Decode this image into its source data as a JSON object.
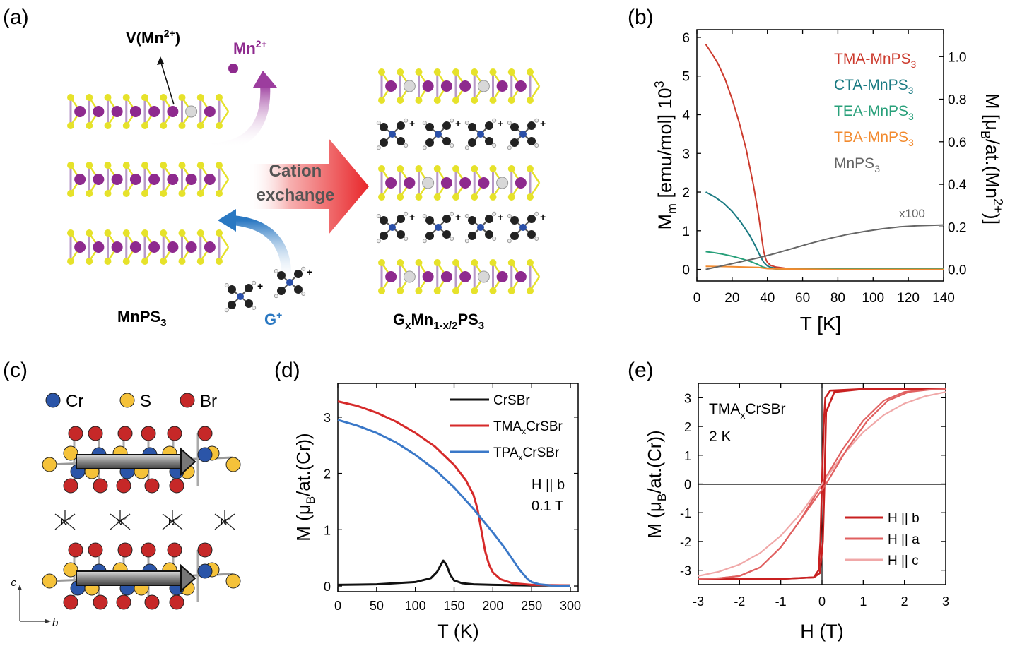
{
  "panels": {
    "a": {
      "letter": "(a)",
      "vacancy": "V(Mn",
      "vacancy_sup": "2+",
      "vacancy_close": ")",
      "ion": "Mn",
      "ion_sup": "2+",
      "arrow_text_1": "Cation",
      "arrow_text_2": "exchange",
      "left_label": "MnPS",
      "left_label_sub": "3",
      "guest": "G",
      "guest_sup": "+",
      "right_label_g": "G",
      "right_label_x": "x",
      "right_label_mn": "Mn",
      "right_label_sub": "1-x/2",
      "right_label_ps": "PS",
      "right_label_3": "3",
      "plus": "+"
    },
    "b": {
      "letter": "(b)",
      "annotation": "x100",
      "ylabel_left_main": "M",
      "ylabel_left_sub": "m",
      "ylabel_left_rest": " [emu/mol] 10",
      "ylabel_left_sup": "3",
      "ylabel_right_1": "M [μ",
      "ylabel_right_sub": "B",
      "ylabel_right_2": "/at.(Mn",
      "ylabel_right_sup": "2+",
      "ylabel_right_3": ")]",
      "xlabel": "T [K]"
    },
    "c": {
      "letter": "(c)",
      "legend": [
        {
          "label": "Cr",
          "color": "#2b55a8"
        },
        {
          "label": "S",
          "color": "#f5c23a"
        },
        {
          "label": "Br",
          "color": "#c62828"
        }
      ],
      "axis_c": "c",
      "axis_b": "b",
      "nplus": "N",
      "nplus_sup": "+"
    },
    "d": {
      "letter": "(d)",
      "ylabel_1": "M (μ",
      "ylabel_sub": "B",
      "ylabel_2": "/at.(Cr))",
      "xlabel": "T (K)",
      "cond_1": "H || b",
      "cond_2": "0.1 T"
    },
    "e": {
      "letter": "(e)",
      "ylabel_1": "M (μ",
      "ylabel_sub": "B",
      "ylabel_2": "/at.(Cr))",
      "xlabel": "H (T)",
      "sample_1": "TMA",
      "sample_sub": "x",
      "sample_2": "CrSBr",
      "temp": "2 K"
    }
  },
  "chart_data": [
    {
      "panel": "b",
      "type": "line",
      "xlabel": "T [K]",
      "ylabel": "M_m [emu/mol] 10^3",
      "ylabel_right": "M [μB/at.(Mn2+)]",
      "xlim": [
        0,
        140
      ],
      "ylim": [
        -0.3,
        6.2
      ],
      "ylim_right": [
        -0.0545,
        1.127
      ],
      "xticks": [
        0,
        20,
        40,
        60,
        80,
        100,
        120,
        140
      ],
      "yticks": [
        0,
        1,
        2,
        3,
        4,
        5,
        6
      ],
      "yticks_right": [
        "0.0",
        "0.2",
        "0.4",
        "0.6",
        "0.8",
        "1.0"
      ],
      "legend_position": "top-right",
      "series": [
        {
          "name": "TMA-MnPS3",
          "name_main": "TMA-MnPS",
          "name_sub": "3",
          "color": "#cc3b2e",
          "x": [
            5,
            8,
            12,
            16,
            20,
            24,
            28,
            32,
            35,
            37,
            38,
            39,
            40,
            42,
            45,
            50,
            60,
            80,
            100,
            140
          ],
          "y": [
            5.82,
            5.62,
            5.32,
            4.92,
            4.4,
            3.8,
            3.1,
            2.2,
            1.4,
            0.75,
            0.45,
            0.28,
            0.18,
            0.1,
            0.06,
            0.03,
            0.02,
            0.01,
            0.01,
            0.01
          ]
        },
        {
          "name": "CTA-MnPS3",
          "name_main": "CTA-MnPS",
          "name_sub": "3",
          "color": "#1a7a82",
          "x": [
            5,
            10,
            15,
            20,
            25,
            30,
            33,
            36,
            38,
            40,
            42,
            45,
            50,
            60,
            80,
            100,
            140
          ],
          "y": [
            2.0,
            1.88,
            1.72,
            1.5,
            1.22,
            0.88,
            0.62,
            0.34,
            0.18,
            0.09,
            0.05,
            0.03,
            0.02,
            0.01,
            0.01,
            0.01,
            0.01
          ]
        },
        {
          "name": "TEA-MnPS3",
          "name_main": "TEA-MnPS",
          "name_sub": "3",
          "color": "#28a07a",
          "x": [
            5,
            10,
            15,
            20,
            25,
            30,
            34,
            37,
            40,
            45,
            60,
            100,
            140
          ],
          "y": [
            0.46,
            0.43,
            0.39,
            0.34,
            0.28,
            0.21,
            0.14,
            0.07,
            0.03,
            0.01,
            0.01,
            0.01,
            0.01
          ]
        },
        {
          "name": "TBA-MnPS3",
          "name_main": "TBA-MnPS",
          "name_sub": "3",
          "color": "#f28a2e",
          "x": [
            5,
            20,
            35,
            40,
            50,
            80,
            140
          ],
          "y": [
            0.08,
            0.07,
            0.05,
            0.02,
            0.01,
            0.0,
            0.0
          ]
        },
        {
          "name": "MnPS3",
          "name_main": "MnPS",
          "name_sub": "3",
          "color": "#666666",
          "x": [
            5,
            15,
            25,
            35,
            45,
            55,
            65,
            75,
            85,
            95,
            105,
            115,
            125,
            140
          ],
          "y": [
            0.0,
            0.1,
            0.2,
            0.3,
            0.42,
            0.55,
            0.68,
            0.8,
            0.9,
            0.98,
            1.05,
            1.1,
            1.13,
            1.15
          ]
        }
      ]
    },
    {
      "panel": "d",
      "type": "line",
      "xlabel": "T (K)",
      "ylabel": "M (μB/at.(Cr))",
      "xlim": [
        0,
        310
      ],
      "ylim": [
        -0.1,
        3.6
      ],
      "xticks": [
        0,
        50,
        100,
        150,
        200,
        250,
        300
      ],
      "yticks": [
        0,
        1,
        2,
        3
      ],
      "legend_position": "top-right",
      "series": [
        {
          "name": "CrSBr",
          "name_main": "CrSBr",
          "name_sub": "",
          "name_rest": "",
          "color": "#111111",
          "x": [
            0,
            50,
            100,
            120,
            128,
            133,
            136,
            140,
            145,
            150,
            160,
            175,
            200,
            250,
            300
          ],
          "y": [
            0.02,
            0.03,
            0.07,
            0.14,
            0.25,
            0.38,
            0.45,
            0.38,
            0.2,
            0.1,
            0.05,
            0.03,
            0.02,
            0.01,
            0.01
          ]
        },
        {
          "name": "TMAxCrSBr",
          "name_main": "TMA",
          "name_sub": "x",
          "name_rest": "CrSBr",
          "color": "#d62a2a",
          "x": [
            0,
            25,
            50,
            75,
            100,
            125,
            150,
            165,
            175,
            180,
            185,
            190,
            195,
            200,
            210,
            225,
            250,
            300
          ],
          "y": [
            3.28,
            3.2,
            3.08,
            2.92,
            2.72,
            2.48,
            2.15,
            1.88,
            1.62,
            1.38,
            1.0,
            0.62,
            0.38,
            0.24,
            0.12,
            0.05,
            0.02,
            0.01
          ]
        },
        {
          "name": "TPAxCrSBr",
          "name_main": "TPA",
          "name_sub": "x",
          "name_rest": "CrSBr",
          "color": "#3a78c8",
          "x": [
            0,
            25,
            50,
            75,
            100,
            125,
            150,
            175,
            200,
            215,
            225,
            235,
            245,
            250,
            260,
            275,
            300
          ],
          "y": [
            2.95,
            2.85,
            2.72,
            2.55,
            2.33,
            2.07,
            1.75,
            1.37,
            0.95,
            0.68,
            0.48,
            0.28,
            0.12,
            0.07,
            0.03,
            0.01,
            0.0
          ]
        }
      ]
    },
    {
      "panel": "e",
      "type": "line",
      "xlabel": "H (T)",
      "ylabel": "M (μB/at.(Cr))",
      "xlim": [
        -3,
        3
      ],
      "ylim": [
        -3.5,
        3.5
      ],
      "xticks": [
        -3,
        -2,
        -1,
        0,
        1,
        2,
        3
      ],
      "yticks": [
        -3,
        -2,
        -1,
        0,
        1,
        2,
        3
      ],
      "legend_position": "bottom-right",
      "series": [
        {
          "name": "H || b",
          "color": "#c82020",
          "width": 2.6,
          "x": [
            -3,
            -1,
            -0.2,
            -0.08,
            -0.04,
            0,
            0.04,
            0.08,
            0.2,
            1,
            3
          ],
          "y": [
            -3.3,
            -3.3,
            -3.25,
            -3.0,
            -2.0,
            0,
            2.0,
            3.0,
            3.25,
            3.3,
            3.3
          ]
        },
        {
          "name": "H || a",
          "color": "#e06060",
          "width": 2.2,
          "x": [
            -3,
            -2.5,
            -2.0,
            -1.5,
            -1.0,
            -0.5,
            0,
            0.5,
            1.0,
            1.5,
            2.0,
            2.5,
            3
          ],
          "y": [
            -3.3,
            -3.28,
            -3.2,
            -2.9,
            -2.2,
            -1.2,
            0,
            1.2,
            2.2,
            2.9,
            3.2,
            3.28,
            3.3
          ]
        },
        {
          "name": "H || c",
          "color": "#f0a8a8",
          "width": 2.2,
          "x": [
            -3,
            -2.5,
            -2.0,
            -1.5,
            -1.0,
            -0.5,
            0,
            0.5,
            1.0,
            1.5,
            2.0,
            2.5,
            3
          ],
          "y": [
            -3.2,
            -3.05,
            -2.8,
            -2.4,
            -1.8,
            -1.0,
            0,
            1.0,
            1.8,
            2.4,
            2.8,
            3.05,
            3.2
          ]
        }
      ]
    }
  ]
}
